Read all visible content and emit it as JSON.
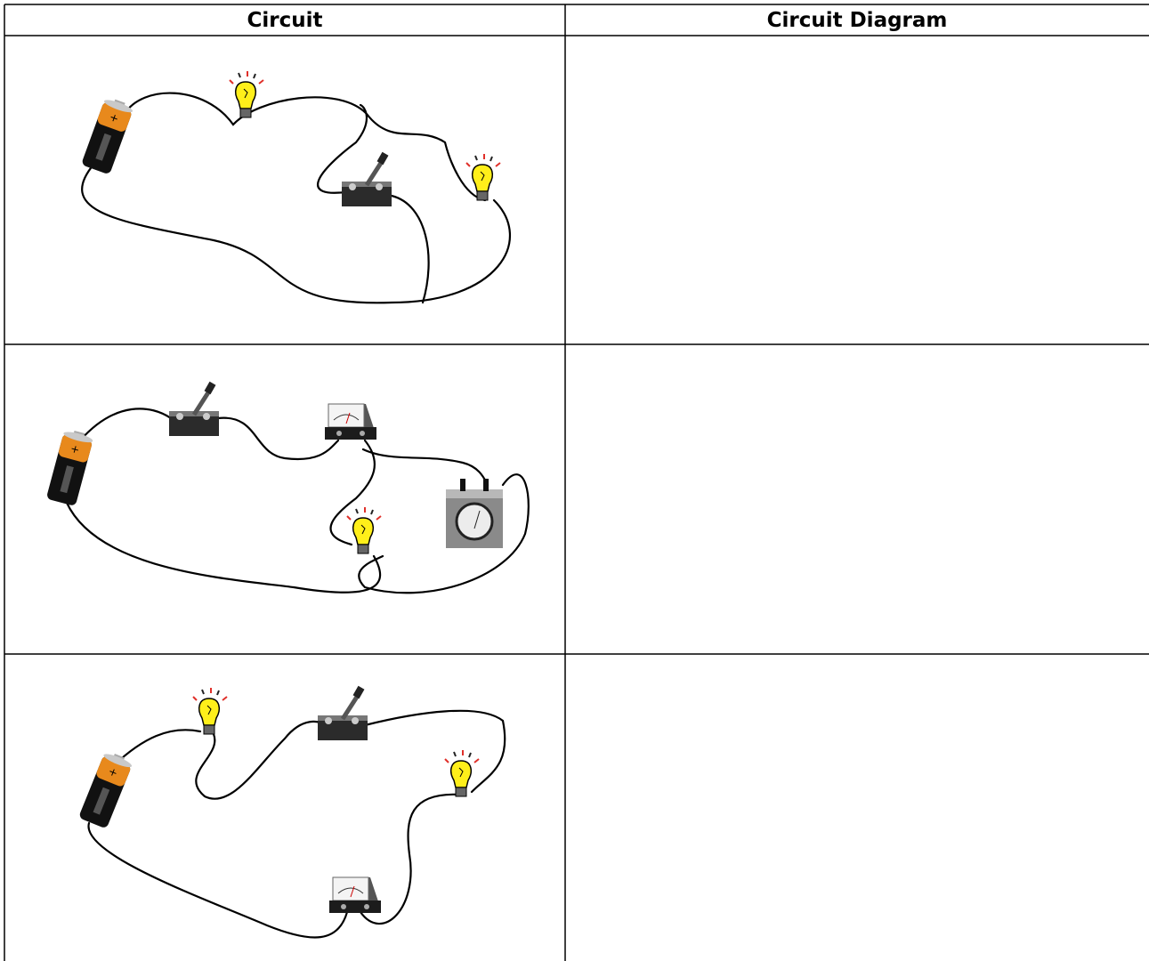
{
  "table": {
    "headers": [
      "Circuit",
      "Circuit Diagram"
    ]
  }
}
